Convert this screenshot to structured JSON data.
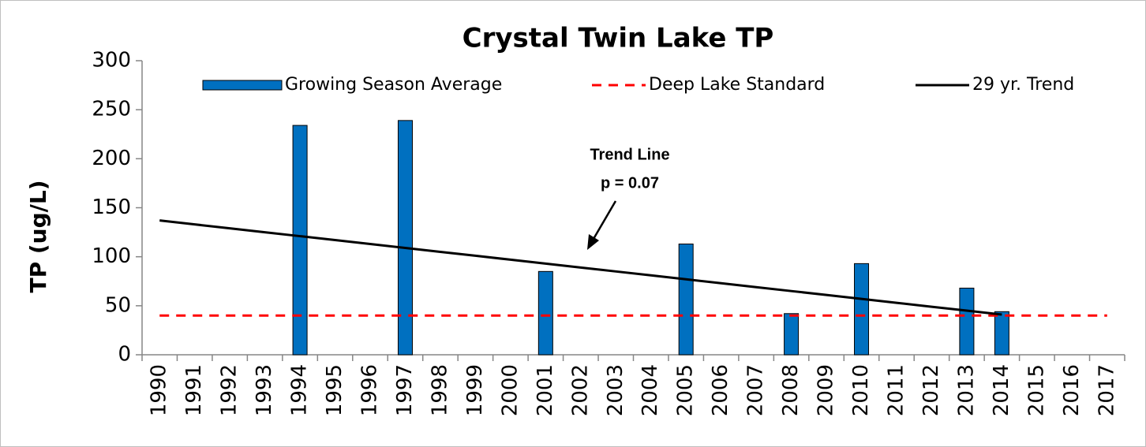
{
  "chart_data": {
    "type": "bar",
    "title": "Crystal Twin Lake TP",
    "y_label": "TP (ug/L)",
    "annotations": [
      "Trend Line",
      "p = 0.07"
    ],
    "categories": [
      "1990",
      "1991",
      "1992",
      "1993",
      "1994",
      "1995",
      "1996",
      "1997",
      "1998",
      "1999",
      "2000",
      "2001",
      "2002",
      "2003",
      "2004",
      "2005",
      "2006",
      "2007",
      "2008",
      "2009",
      "2010",
      "2011",
      "2012",
      "2013",
      "2014",
      "2015",
      "2016",
      "2017"
    ],
    "series": [
      {
        "name": "Growing Season Average",
        "type": "bar",
        "color": "#0070c0",
        "values": [
          null,
          null,
          null,
          null,
          234,
          null,
          null,
          239,
          null,
          null,
          null,
          85,
          null,
          null,
          null,
          113,
          null,
          null,
          42,
          null,
          93,
          null,
          null,
          68,
          44,
          null,
          null,
          null
        ]
      },
      {
        "name": "Deep Lake Standard",
        "type": "line",
        "dashed": true,
        "color": "#ff0000",
        "values": [
          40,
          40,
          40,
          40,
          40,
          40,
          40,
          40,
          40,
          40,
          40,
          40,
          40,
          40,
          40,
          40,
          40,
          40,
          40,
          40,
          40,
          40,
          40,
          40,
          40,
          40,
          40,
          40
        ]
      },
      {
        "name": "29 yr. Trend",
        "type": "line",
        "color": "#000000",
        "values": [
          137,
          133,
          129,
          125,
          121,
          117,
          113,
          109,
          105,
          101,
          97,
          93,
          89,
          85,
          81,
          77,
          73,
          69,
          65,
          61,
          57,
          53,
          49,
          45,
          41,
          null,
          null,
          null
        ]
      }
    ],
    "ylim": [
      0,
      300
    ],
    "yticks": [
      0,
      50,
      100,
      150,
      200,
      250,
      300
    ],
    "legend": "top"
  }
}
